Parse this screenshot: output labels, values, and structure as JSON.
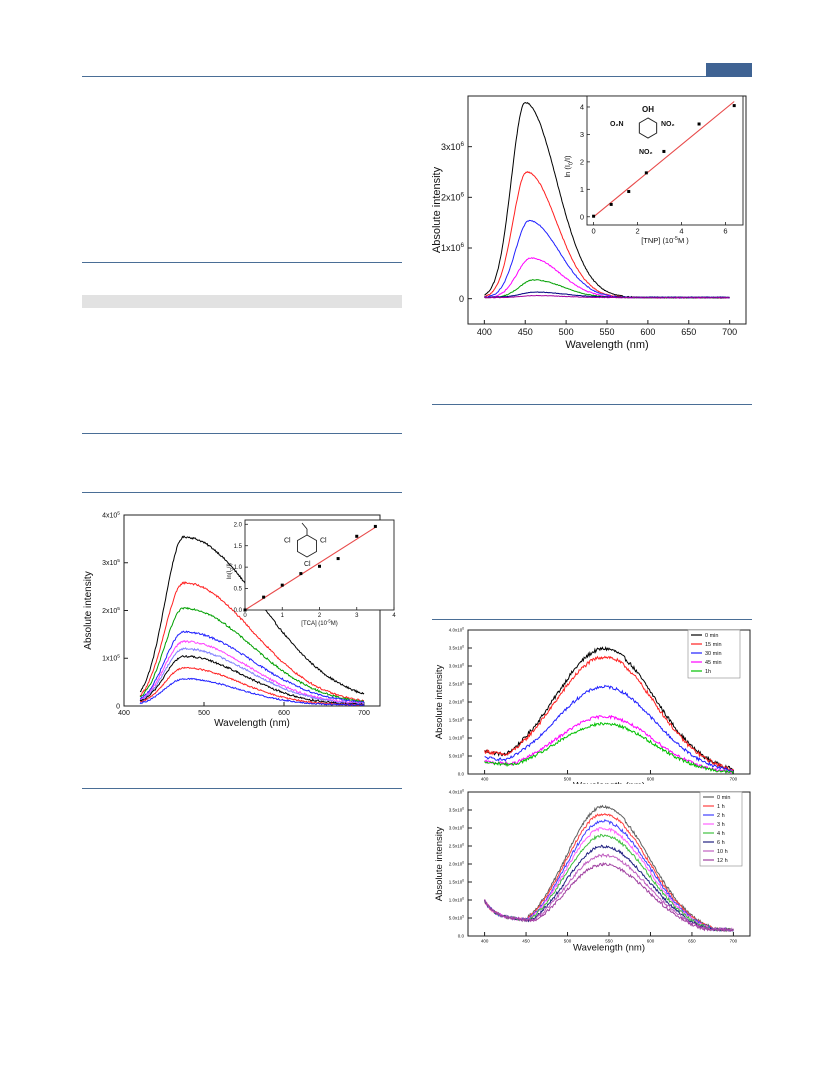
{
  "colors": {
    "header_rule": "#4a6e96",
    "header_tab": "#3f6393",
    "gray_band": "#e2e2e2",
    "fit_line": "#e84a4a"
  },
  "chart_data": [
    {
      "id": "tca",
      "type": "line",
      "xlabel": "Wavelength (nm)",
      "ylabel": "Absolute intensity",
      "xlim": [
        400,
        720
      ],
      "ylim": [
        0,
        4
      ],
      "xticks": [
        "400",
        "500",
        "600",
        "700"
      ],
      "yticks": [
        {
          "v": 0,
          "base": "0",
          "exp": ""
        },
        {
          "v": 1,
          "base": "1x10",
          "exp": "5"
        },
        {
          "v": 2,
          "base": "2x10",
          "exp": "5"
        },
        {
          "v": 3,
          "base": "3x10",
          "exp": "5"
        },
        {
          "v": 4,
          "base": "4x10",
          "exp": "5"
        }
      ],
      "series": [
        {
          "color": "#000000",
          "peak": 475,
          "height": 3.5,
          "wl": 24,
          "wr": 95,
          "tail": 0.04,
          "noise": 0.02
        },
        {
          "color": "#ff2020",
          "peak": 475,
          "height": 2.55,
          "wl": 24,
          "wr": 85,
          "tail": 0.03,
          "noise": 0.02
        },
        {
          "color": "#00a000",
          "peak": 475,
          "height": 2.02,
          "wl": 24,
          "wr": 85,
          "tail": 0.03,
          "noise": 0.02
        },
        {
          "color": "#2020ff",
          "peak": 475,
          "height": 1.52,
          "wl": 24,
          "wr": 85,
          "tail": 0.03,
          "noise": 0.02
        },
        {
          "color": "#ff40ff",
          "peak": 475,
          "height": 1.32,
          "wl": 24,
          "wr": 80,
          "tail": 0.03,
          "noise": 0.02
        },
        {
          "color": "#8080ff",
          "peak": 475,
          "height": 1.18,
          "wl": 24,
          "wr": 80,
          "tail": 0.02,
          "noise": 0.02
        },
        {
          "color": "#000000",
          "peak": 475,
          "height": 1.02,
          "wl": 24,
          "wr": 75,
          "tail": 0.02,
          "noise": 0.02
        },
        {
          "color": "#ff2020",
          "peak": 475,
          "height": 0.78,
          "wl": 24,
          "wr": 70,
          "tail": 0.02,
          "noise": 0.015
        },
        {
          "color": "#2020ff",
          "peak": 475,
          "height": 0.55,
          "wl": 24,
          "wr": 68,
          "tail": 0.02,
          "noise": 0.015
        }
      ],
      "inset": {
        "type": "scatter",
        "xlabel": "[TCA] (10",
        "xlabel_exp": "-5",
        "xlabel_end": "M)",
        "ylabel": "ln(I",
        "ylabel_sub": "0",
        "ylabel_end": "/I)",
        "xlim": [
          0,
          4
        ],
        "ylim": [
          0,
          2.1
        ],
        "xticks": [
          "0",
          "1",
          "2",
          "3",
          "4"
        ],
        "yticks": [
          "0.0",
          "0.5",
          "1.0",
          "1.5",
          "2.0"
        ],
        "points": [
          [
            0,
            0
          ],
          [
            0.5,
            0.3
          ],
          [
            1.0,
            0.58
          ],
          [
            1.5,
            0.85
          ],
          [
            2.0,
            1.02
          ],
          [
            2.5,
            1.2
          ],
          [
            3.0,
            1.72
          ],
          [
            3.5,
            1.95
          ]
        ],
        "fit": [
          [
            0,
            0
          ],
          [
            3.5,
            1.93
          ]
        ],
        "structure": {
          "atoms": [
            "Cl",
            "Cl",
            "Cl"
          ]
        }
      }
    },
    {
      "id": "tnp",
      "type": "line",
      "xlabel": "Wavelength (nm)",
      "ylabel": "Absolute intensity",
      "xlim": [
        380,
        720
      ],
      "ylim": [
        -0.5,
        4
      ],
      "xticks": [
        "400",
        "450",
        "500",
        "550",
        "600",
        "650",
        "700"
      ],
      "yticks": [
        {
          "v": 0,
          "base": "0",
          "exp": ""
        },
        {
          "v": 1,
          "base": "1x10",
          "exp": "6"
        },
        {
          "v": 2,
          "base": "2x10",
          "exp": "6"
        },
        {
          "v": 3,
          "base": "3x10",
          "exp": "6"
        }
      ],
      "series": [
        {
          "color": "#000000",
          "peak": 450,
          "height": 3.85,
          "wl": 17,
          "wr": 38,
          "tail": 0.02,
          "noise": 0.01
        },
        {
          "color": "#ff2020",
          "peak": 452,
          "height": 2.48,
          "wl": 17,
          "wr": 36,
          "tail": 0.02,
          "noise": 0.01
        },
        {
          "color": "#2020ff",
          "peak": 455,
          "height": 1.52,
          "wl": 17,
          "wr": 36,
          "tail": 0.02,
          "noise": 0.01
        },
        {
          "color": "#ff00ff",
          "peak": 457,
          "height": 0.78,
          "wl": 17,
          "wr": 36,
          "tail": 0.02,
          "noise": 0.01
        },
        {
          "color": "#00a000",
          "peak": 460,
          "height": 0.35,
          "wl": 17,
          "wr": 36,
          "tail": 0.02,
          "noise": 0.008
        },
        {
          "color": "#000080",
          "peak": 462,
          "height": 0.1,
          "wl": 17,
          "wr": 36,
          "tail": 0.03,
          "noise": 0.005
        },
        {
          "color": "#a000a0",
          "peak": 462,
          "height": 0.04,
          "wl": 17,
          "wr": 36,
          "tail": 0.02,
          "noise": 0.004
        }
      ],
      "inset": {
        "type": "scatter",
        "xlabel": "[TNP] (10",
        "xlabel_exp": "-5",
        "xlabel_end": "M )",
        "ylabel": "ln (I",
        "ylabel_sub": "0",
        "ylabel_end": "/I)",
        "xlim": [
          -0.3,
          6.8
        ],
        "ylim": [
          -0.3,
          4.4
        ],
        "xticks": [
          "0",
          "2",
          "4",
          "6"
        ],
        "yticks": [
          "0",
          "1",
          "2",
          "3",
          "4"
        ],
        "points": [
          [
            0,
            0.02
          ],
          [
            0.8,
            0.45
          ],
          [
            1.6,
            0.92
          ],
          [
            2.4,
            1.6
          ],
          [
            3.2,
            2.38
          ],
          [
            4.8,
            3.38
          ],
          [
            6.4,
            4.05
          ]
        ],
        "fit": [
          [
            0,
            0
          ],
          [
            6.4,
            4.2
          ]
        ],
        "structure": {
          "oh": "OH",
          "no2_left": "O₂N",
          "no2_right": "NO₂",
          "no2_bottom": "NO₂"
        }
      }
    },
    {
      "id": "time_min",
      "type": "line",
      "xlabel": "Wavelength (nm)",
      "ylabel": "Absolute intensity",
      "xlim": [
        380,
        720
      ],
      "ylim": [
        0,
        4
      ],
      "xticks": [
        "400",
        "500",
        "600",
        "700"
      ],
      "yticks": [
        {
          "v": 0,
          "base": "0.0",
          "exp": ""
        },
        {
          "v": 0.5,
          "base": "5.0x10",
          "exp": "5"
        },
        {
          "v": 1.0,
          "base": "1.0x10",
          "exp": "6"
        },
        {
          "v": 1.5,
          "base": "1.5x10",
          "exp": "6"
        },
        {
          "v": 2.0,
          "base": "2.0x10",
          "exp": "6"
        },
        {
          "v": 2.5,
          "base": "2.5x10",
          "exp": "6"
        },
        {
          "v": 3.0,
          "base": "3.0x10",
          "exp": "6"
        },
        {
          "v": 3.5,
          "base": "3.5x10",
          "exp": "6"
        },
        {
          "v": 4.0,
          "base": "4.0x10",
          "exp": "6"
        }
      ],
      "legend": [
        "0 min",
        "15 min",
        "30 min",
        "45 min",
        "1h"
      ],
      "series": [
        {
          "color": "#000000",
          "peak": 545,
          "height": 3.45,
          "wl": 60,
          "wr": 60,
          "start": 400,
          "end": 700,
          "base": 0.55,
          "noise": 0.05
        },
        {
          "color": "#ff2020",
          "peak": 545,
          "height": 3.22,
          "wl": 60,
          "wr": 60,
          "start": 400,
          "end": 700,
          "base": 0.55,
          "noise": 0.05
        },
        {
          "color": "#2020ff",
          "peak": 545,
          "height": 2.4,
          "wl": 60,
          "wr": 60,
          "start": 400,
          "end": 700,
          "base": 0.4,
          "noise": 0.04
        },
        {
          "color": "#ff00ff",
          "peak": 545,
          "height": 1.58,
          "wl": 58,
          "wr": 58,
          "start": 400,
          "end": 700,
          "base": 0.3,
          "noise": 0.04
        },
        {
          "color": "#00c000",
          "peak": 545,
          "height": 1.38,
          "wl": 58,
          "wr": 58,
          "start": 400,
          "end": 700,
          "base": 0.28,
          "noise": 0.04
        }
      ]
    },
    {
      "id": "time_h",
      "type": "line",
      "xlabel": "Wavelength (nm)",
      "ylabel": "Absolute intensity",
      "xlim": [
        380,
        720
      ],
      "ylim": [
        0,
        4
      ],
      "xticks": [
        "400",
        "450",
        "500",
        "550",
        "600",
        "650",
        "700"
      ],
      "yticks": [
        {
          "v": 0,
          "base": "0.0",
          "exp": ""
        },
        {
          "v": 0.5,
          "base": "5.0x10",
          "exp": "5"
        },
        {
          "v": 1.0,
          "base": "1.0x10",
          "exp": "6"
        },
        {
          "v": 1.5,
          "base": "1.5x10",
          "exp": "6"
        },
        {
          "v": 2.0,
          "base": "2.0x10",
          "exp": "6"
        },
        {
          "v": 2.5,
          "base": "2.5x10",
          "exp": "6"
        },
        {
          "v": 3.0,
          "base": "3.0x10",
          "exp": "6"
        },
        {
          "v": 3.5,
          "base": "3.5x10",
          "exp": "6"
        },
        {
          "v": 4.0,
          "base": "4.0x10",
          "exp": "6"
        }
      ],
      "legend": [
        "0 min",
        "1 h",
        "2 h",
        "3 h",
        "4 h",
        "6 h",
        "10 h",
        "12 h"
      ],
      "series": [
        {
          "color": "#606060",
          "peak": 543,
          "height": 3.55,
          "wl": 45,
          "wr": 55,
          "start": 400,
          "end": 700,
          "base": 0.85,
          "noise": 0.04,
          "dip": true
        },
        {
          "color": "#ff4040",
          "peak": 543,
          "height": 3.35,
          "wl": 45,
          "wr": 55,
          "start": 400,
          "end": 700,
          "base": 0.85,
          "noise": 0.04,
          "dip": true
        },
        {
          "color": "#4040ff",
          "peak": 543,
          "height": 3.15,
          "wl": 45,
          "wr": 55,
          "start": 400,
          "end": 700,
          "base": 0.85,
          "noise": 0.04,
          "dip": true
        },
        {
          "color": "#ff60ff",
          "peak": 543,
          "height": 2.95,
          "wl": 45,
          "wr": 55,
          "start": 400,
          "end": 700,
          "base": 0.85,
          "noise": 0.04,
          "dip": true
        },
        {
          "color": "#40c040",
          "peak": 543,
          "height": 2.75,
          "wl": 45,
          "wr": 55,
          "start": 400,
          "end": 700,
          "base": 0.85,
          "noise": 0.04,
          "dip": true
        },
        {
          "color": "#202080",
          "peak": 543,
          "height": 2.45,
          "wl": 45,
          "wr": 55,
          "start": 400,
          "end": 700,
          "base": 0.85,
          "noise": 0.04,
          "dip": true
        },
        {
          "color": "#c060c0",
          "peak": 543,
          "height": 2.2,
          "wl": 45,
          "wr": 55,
          "start": 400,
          "end": 700,
          "base": 0.85,
          "noise": 0.04,
          "dip": true
        },
        {
          "color": "#a040a0",
          "peak": 543,
          "height": 1.95,
          "wl": 45,
          "wr": 55,
          "start": 400,
          "end": 700,
          "base": 0.85,
          "noise": 0.04,
          "dip": true
        }
      ]
    }
  ]
}
